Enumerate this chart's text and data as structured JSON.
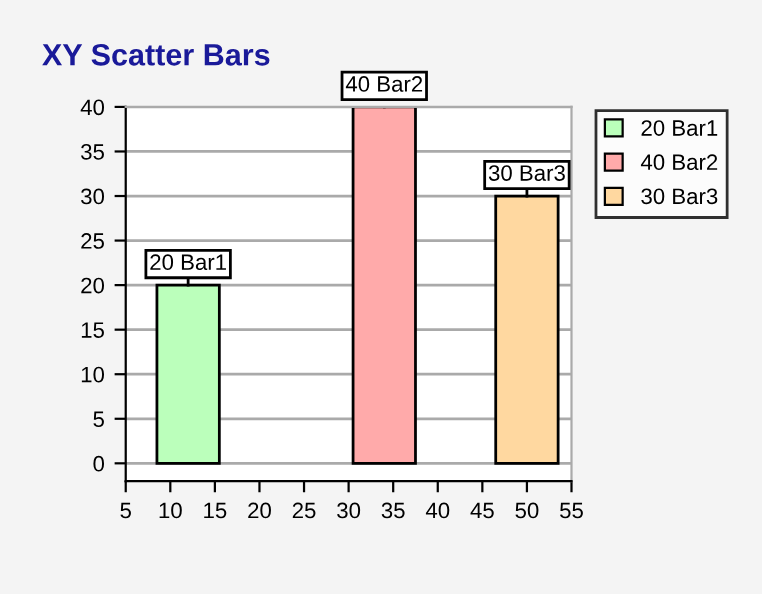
{
  "chart_data": {
    "type": "bar",
    "title": "XY Scatter Bars",
    "series": [
      {
        "name": "20 Bar1",
        "color": "#bbffbb",
        "x": [
          12
        ],
        "values": [
          20
        ],
        "value_labels": [
          "20 Bar1"
        ]
      },
      {
        "name": "40 Bar2",
        "color": "#ffaaaa",
        "x": [
          34
        ],
        "values": [
          40
        ],
        "value_labels": [
          "40 Bar2"
        ]
      },
      {
        "name": "30 Bar3",
        "color": "#ffd8a0",
        "x": [
          50
        ],
        "values": [
          30
        ],
        "value_labels": [
          "30 Bar3"
        ]
      }
    ],
    "xlim": [
      5,
      55
    ],
    "xticks": [
      5,
      10,
      15,
      20,
      25,
      30,
      35,
      40,
      45,
      50,
      55
    ],
    "ylim": [
      -2,
      40
    ],
    "yticks": [
      0,
      5,
      10,
      15,
      20,
      25,
      30,
      35,
      40
    ],
    "grid": "y",
    "legend": "top right"
  }
}
